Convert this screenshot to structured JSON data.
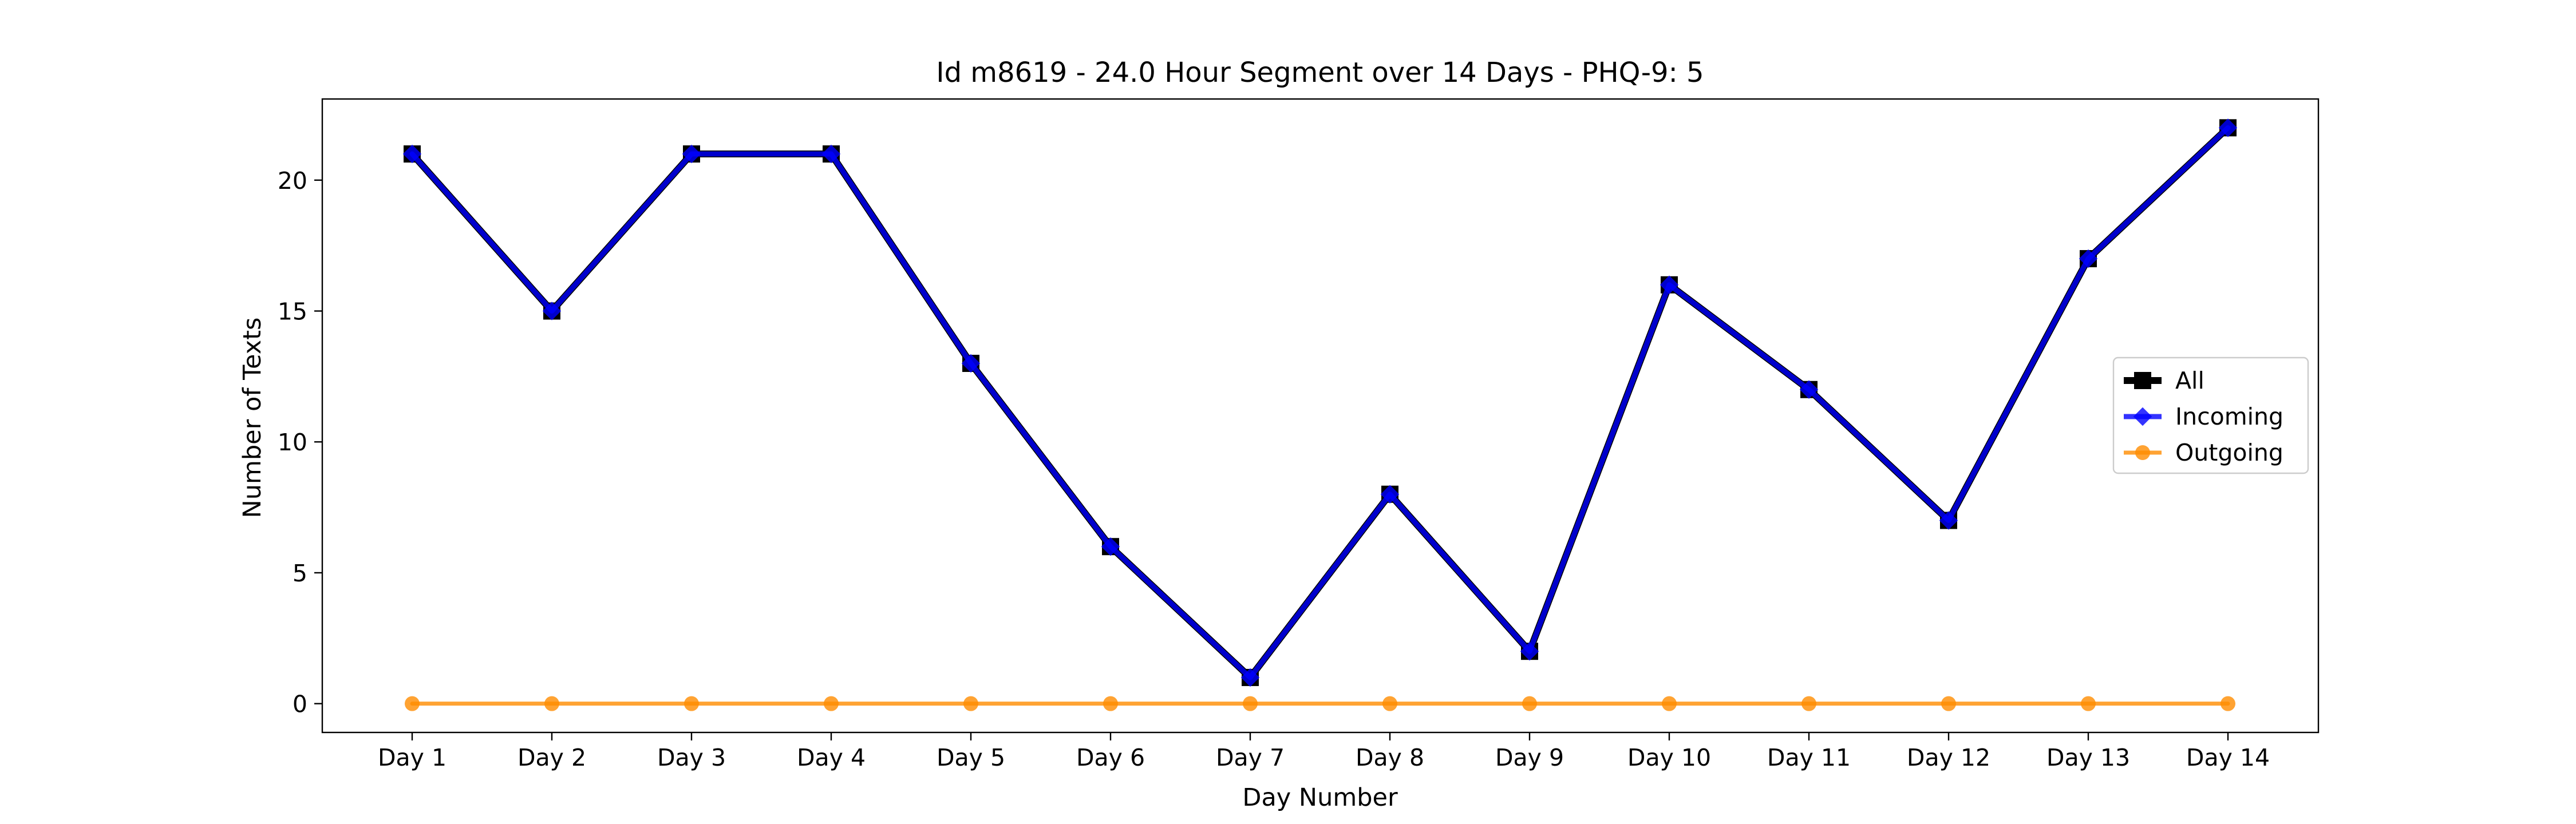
{
  "chart_data": {
    "type": "line",
    "title": "Id m8619 - 24.0 Hour Segment over 14 Days - PHQ-9: 5",
    "xlabel": "Day Number",
    "ylabel": "Number of Texts",
    "categories": [
      "Day 1",
      "Day 2",
      "Day 3",
      "Day 4",
      "Day 5",
      "Day 6",
      "Day 7",
      "Day 8",
      "Day 9",
      "Day 10",
      "Day 11",
      "Day 12",
      "Day 13",
      "Day 14"
    ],
    "ylim": [
      -1.1,
      23.1
    ],
    "yticks": [
      0,
      5,
      10,
      15,
      20
    ],
    "grid": false,
    "legend_position": "center-right",
    "series": [
      {
        "name": "All",
        "values": [
          21,
          15,
          21,
          21,
          13,
          6,
          1,
          8,
          2,
          16,
          12,
          7,
          17,
          22
        ],
        "color": "#000000",
        "marker": "square"
      },
      {
        "name": "Incoming",
        "values": [
          21,
          15,
          21,
          21,
          13,
          6,
          1,
          8,
          2,
          16,
          12,
          7,
          17,
          22
        ],
        "color": "#0000ff",
        "marker": "diamond"
      },
      {
        "name": "Outgoing",
        "values": [
          0,
          0,
          0,
          0,
          0,
          0,
          0,
          0,
          0,
          0,
          0,
          0,
          0,
          0
        ],
        "color": "#ff8c00",
        "marker": "circle"
      }
    ]
  }
}
